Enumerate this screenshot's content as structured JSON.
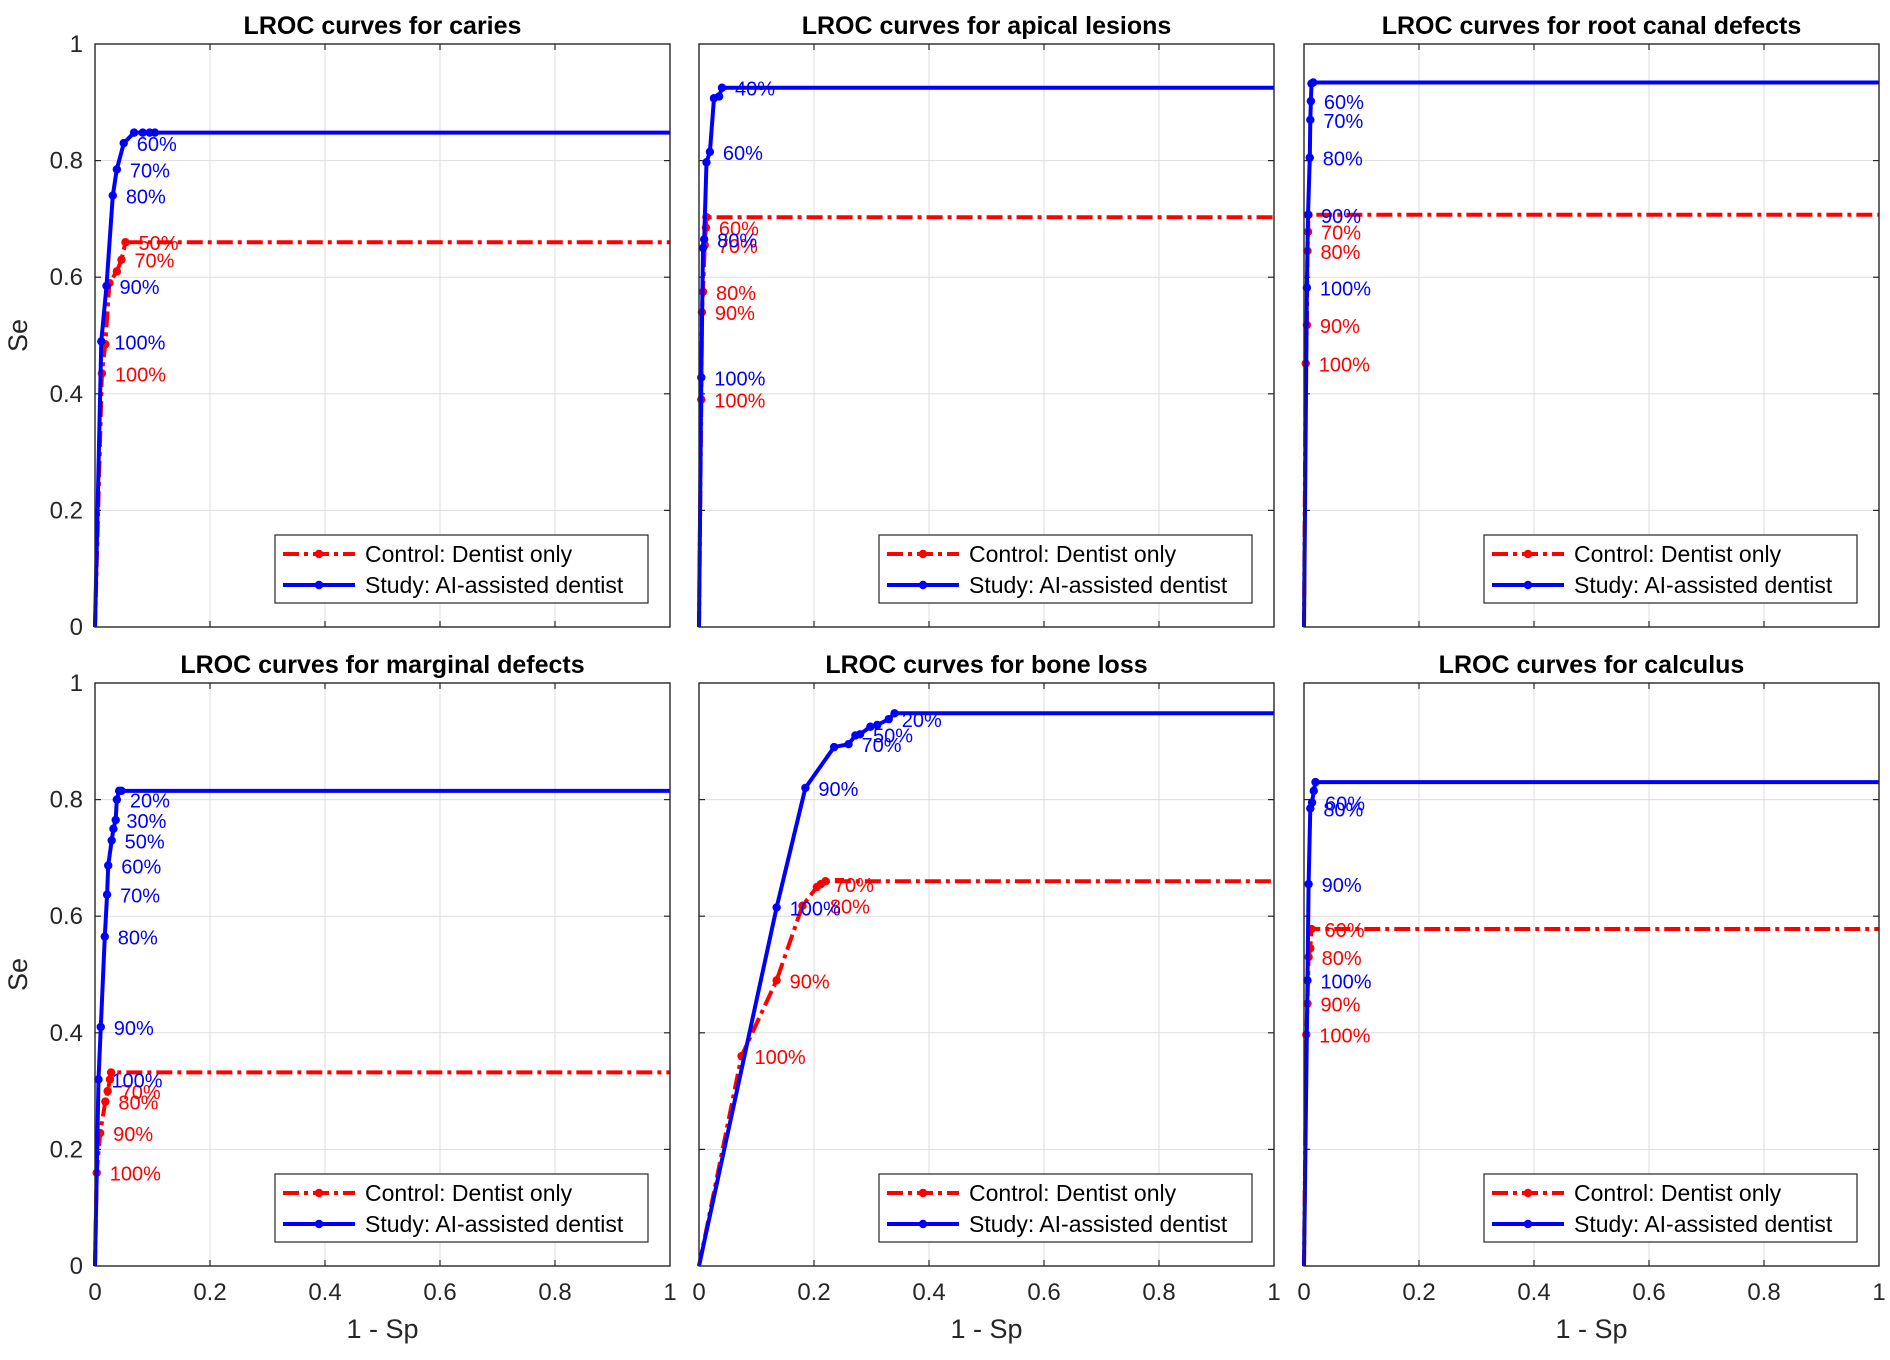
{
  "colors": {
    "control": "#ff0000",
    "study": "#0000ff",
    "grid": "#dedede",
    "axis": "#262626"
  },
  "shared": {
    "xlabel": "1 - Sp",
    "ylabel": "Se",
    "xlim": [
      0,
      1
    ],
    "ylim": [
      0,
      1
    ],
    "xticks": [
      "0",
      "0.2",
      "0.4",
      "0.6",
      "0.8",
      "1"
    ],
    "yticks": [
      "0",
      "0.2",
      "0.4",
      "0.6",
      "0.8",
      "1"
    ],
    "legend": [
      "Control: Dentist only",
      "Study: AI-assisted dentist"
    ]
  },
  "chart_data": [
    {
      "type": "line",
      "title": "LROC curves for caries",
      "xlabel": "1 - Sp",
      "ylabel": "Se",
      "xlim": [
        0,
        1
      ],
      "ylim": [
        0,
        1
      ],
      "grid": true,
      "legend_position": "bottom-right",
      "series": [
        {
          "name": "Control: Dentist only",
          "x": [
            0,
            0.012,
            0.018,
            0.025,
            0.038,
            0.046,
            0.053,
            1
          ],
          "y": [
            0,
            0.435,
            0.485,
            0.59,
            0.61,
            0.63,
            0.66,
            0.66
          ],
          "labels": [
            {
              "text": "100%",
              "x": 0.012,
              "y": 0.435
            },
            {
              "text": "70%",
              "x": 0.046,
              "y": 0.63
            },
            {
              "text": "50%",
              "x": 0.053,
              "y": 0.66
            }
          ]
        },
        {
          "name": "Study: AI-assisted dentist",
          "x": [
            0,
            0.011,
            0.02,
            0.031,
            0.038,
            0.05,
            0.068,
            0.083,
            0.095,
            0.104,
            1
          ],
          "y": [
            0,
            0.49,
            0.585,
            0.74,
            0.785,
            0.83,
            0.848,
            0.848,
            0.848,
            0.848,
            0.848
          ],
          "labels": [
            {
              "text": "100%",
              "x": 0.011,
              "y": 0.49
            },
            {
              "text": "90%",
              "x": 0.02,
              "y": 0.585
            },
            {
              "text": "80%",
              "x": 0.031,
              "y": 0.74
            },
            {
              "text": "70%",
              "x": 0.038,
              "y": 0.785
            },
            {
              "text": "60%",
              "x": 0.05,
              "y": 0.83
            }
          ]
        }
      ]
    },
    {
      "type": "line",
      "title": "LROC curves for apical lesions",
      "xlabel": "1 - Sp",
      "ylabel": "Se",
      "xlim": [
        0,
        1
      ],
      "ylim": [
        0,
        1
      ],
      "grid": true,
      "legend_position": "bottom-right",
      "series": [
        {
          "name": "Control: Dentist only",
          "x": [
            0,
            0.004,
            0.005,
            0.007,
            0.01,
            0.012,
            0.013,
            1
          ],
          "y": [
            0,
            0.39,
            0.54,
            0.575,
            0.655,
            0.685,
            0.703,
            0.703
          ],
          "labels": [
            {
              "text": "100%",
              "x": 0.004,
              "y": 0.39
            },
            {
              "text": "90%",
              "x": 0.005,
              "y": 0.54
            },
            {
              "text": "80%",
              "x": 0.007,
              "y": 0.575
            },
            {
              "text": "70%",
              "x": 0.01,
              "y": 0.655
            },
            {
              "text": "60%",
              "x": 0.012,
              "y": 0.685
            }
          ]
        },
        {
          "name": "Study: AI-assisted dentist",
          "x": [
            0,
            0.004,
            0.007,
            0.009,
            0.013,
            0.019,
            0.026,
            0.035,
            0.04,
            1
          ],
          "y": [
            0,
            0.428,
            0.65,
            0.665,
            0.797,
            0.815,
            0.907,
            0.91,
            0.925,
            0.925
          ],
          "labels": [
            {
              "text": "100%",
              "x": 0.004,
              "y": 0.428
            },
            {
              "text": "80%",
              "x": 0.009,
              "y": 0.665
            },
            {
              "text": "60%",
              "x": 0.019,
              "y": 0.815
            },
            {
              "text": "40%",
              "x": 0.04,
              "y": 0.925
            }
          ]
        }
      ]
    },
    {
      "type": "line",
      "title": "LROC curves for root canal defects",
      "xlabel": "1 - Sp",
      "ylabel": "Se",
      "xlim": [
        0,
        1
      ],
      "ylim": [
        0,
        1
      ],
      "grid": true,
      "legend_position": "bottom-right",
      "series": [
        {
          "name": "Control: Dentist only",
          "x": [
            0,
            0.003,
            0.005,
            0.006,
            0.007,
            0.008,
            1
          ],
          "y": [
            0,
            0.452,
            0.518,
            0.645,
            0.678,
            0.707,
            0.707
          ],
          "labels": [
            {
              "text": "100%",
              "x": 0.003,
              "y": 0.452
            },
            {
              "text": "90%",
              "x": 0.005,
              "y": 0.518
            },
            {
              "text": "80%",
              "x": 0.006,
              "y": 0.645
            },
            {
              "text": "70%",
              "x": 0.007,
              "y": 0.678
            }
          ]
        },
        {
          "name": "Study: AI-assisted dentist",
          "x": [
            0,
            0.005,
            0.007,
            0.01,
            0.011,
            0.012,
            0.013,
            0.016,
            1
          ],
          "y": [
            0,
            0.582,
            0.707,
            0.805,
            0.87,
            0.902,
            0.932,
            0.934,
            0.934
          ],
          "labels": [
            {
              "text": "100%",
              "x": 0.005,
              "y": 0.582
            },
            {
              "text": "90%",
              "x": 0.007,
              "y": 0.707
            },
            {
              "text": "80%",
              "x": 0.01,
              "y": 0.805
            },
            {
              "text": "70%",
              "x": 0.011,
              "y": 0.87
            },
            {
              "text": "60%",
              "x": 0.012,
              "y": 0.902
            }
          ]
        }
      ]
    },
    {
      "type": "line",
      "title": "LROC curves for marginal defects",
      "xlabel": "1 - Sp",
      "ylabel": "Se",
      "xlim": [
        0,
        1
      ],
      "ylim": [
        0,
        1
      ],
      "grid": true,
      "legend_position": "bottom-right",
      "series": [
        {
          "name": "Control: Dentist only",
          "x": [
            0,
            0.003,
            0.009,
            0.018,
            0.022,
            0.026,
            0.028,
            1
          ],
          "y": [
            0,
            0.16,
            0.228,
            0.282,
            0.3,
            0.32,
            0.332,
            0.332
          ],
          "labels": [
            {
              "text": "100%",
              "x": 0.003,
              "y": 0.16
            },
            {
              "text": "90%",
              "x": 0.009,
              "y": 0.228
            },
            {
              "text": "80%",
              "x": 0.018,
              "y": 0.282
            },
            {
              "text": "70%",
              "x": 0.022,
              "y": 0.3
            }
          ]
        },
        {
          "name": "Study: AI-assisted dentist",
          "x": [
            0,
            0.006,
            0.01,
            0.017,
            0.021,
            0.023,
            0.029,
            0.032,
            0.036,
            0.038,
            0.042,
            0.046,
            1
          ],
          "y": [
            0,
            0.32,
            0.41,
            0.565,
            0.637,
            0.687,
            0.73,
            0.75,
            0.765,
            0.8,
            0.815,
            0.815,
            0.815
          ],
          "labels": [
            {
              "text": "100%",
              "x": 0.006,
              "y": 0.32
            },
            {
              "text": "90%",
              "x": 0.01,
              "y": 0.41
            },
            {
              "text": "80%",
              "x": 0.017,
              "y": 0.565
            },
            {
              "text": "70%",
              "x": 0.021,
              "y": 0.637
            },
            {
              "text": "60%",
              "x": 0.023,
              "y": 0.687
            },
            {
              "text": "50%",
              "x": 0.029,
              "y": 0.73
            },
            {
              "text": "30%",
              "x": 0.032,
              "y": 0.765
            },
            {
              "text": "20%",
              "x": 0.038,
              "y": 0.8
            }
          ]
        }
      ]
    },
    {
      "type": "line",
      "title": "LROC curves for bone loss",
      "xlabel": "1 - Sp",
      "ylabel": "Se",
      "xlim": [
        0,
        1
      ],
      "ylim": [
        0,
        1
      ],
      "grid": true,
      "legend_position": "bottom-right",
      "series": [
        {
          "name": "Control: Dentist only",
          "x": [
            0,
            0.074,
            0.135,
            0.18,
            0.205,
            0.212,
            0.22,
            1
          ],
          "y": [
            0,
            0.36,
            0.49,
            0.618,
            0.65,
            0.655,
            0.66,
            0.66
          ],
          "labels": [
            {
              "text": "100%",
              "x": 0.074,
              "y": 0.36
            },
            {
              "text": "90%",
              "x": 0.135,
              "y": 0.49
            },
            {
              "text": "80%",
              "x": 0.205,
              "y": 0.618
            },
            {
              "text": "70%",
              "x": 0.212,
              "y": 0.655
            }
          ]
        },
        {
          "name": "Study: AI-assisted dentist",
          "x": [
            0,
            0.135,
            0.185,
            0.235,
            0.26,
            0.272,
            0.28,
            0.298,
            0.31,
            0.33,
            0.34,
            1
          ],
          "y": [
            0,
            0.615,
            0.82,
            0.89,
            0.895,
            0.91,
            0.912,
            0.925,
            0.928,
            0.938,
            0.948,
            0.948
          ],
          "labels": [
            {
              "text": "100%",
              "x": 0.135,
              "y": 0.615
            },
            {
              "text": "90%",
              "x": 0.185,
              "y": 0.82
            },
            {
              "text": "70%",
              "x": 0.26,
              "y": 0.895
            },
            {
              "text": "50%",
              "x": 0.28,
              "y": 0.912
            },
            {
              "text": "20%",
              "x": 0.33,
              "y": 0.938
            }
          ]
        }
      ]
    },
    {
      "type": "line",
      "title": "LROC curves for calculus",
      "xlabel": "1 - Sp",
      "ylabel": "Se",
      "xlim": [
        0,
        1
      ],
      "ylim": [
        0,
        1
      ],
      "grid": true,
      "legend_position": "bottom-right",
      "series": [
        {
          "name": "Control: Dentist only",
          "x": [
            0,
            0.004,
            0.006,
            0.008,
            0.011,
            0.013,
            1
          ],
          "y": [
            0,
            0.397,
            0.45,
            0.53,
            0.545,
            0.578,
            0.578
          ],
          "labels": [
            {
              "text": "100%",
              "x": 0.004,
              "y": 0.397
            },
            {
              "text": "90%",
              "x": 0.006,
              "y": 0.45
            },
            {
              "text": "80%",
              "x": 0.008,
              "y": 0.53
            },
            {
              "text": "60%",
              "x": 0.013,
              "y": 0.578
            }
          ]
        },
        {
          "name": "Study: AI-assisted dentist",
          "x": [
            0,
            0.006,
            0.008,
            0.011,
            0.014,
            0.017,
            0.02,
            1
          ],
          "y": [
            0,
            0.49,
            0.655,
            0.785,
            0.795,
            0.815,
            0.83,
            0.83
          ],
          "labels": [
            {
              "text": "100%",
              "x": 0.006,
              "y": 0.49
            },
            {
              "text": "90%",
              "x": 0.008,
              "y": 0.655
            },
            {
              "text": "80%",
              "x": 0.011,
              "y": 0.785
            },
            {
              "text": "60%",
              "x": 0.014,
              "y": 0.795
            }
          ]
        }
      ]
    }
  ]
}
